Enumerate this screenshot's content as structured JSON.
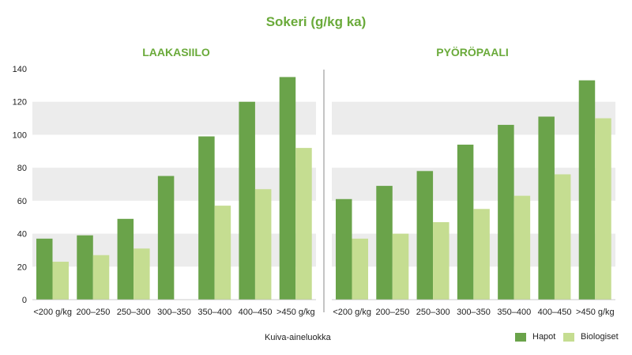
{
  "chart_data": {
    "type": "bar",
    "title": "Sokeri (g/kg ka)",
    "xlabel": "Kuiva-aineluokka",
    "ylim": [
      0,
      140
    ],
    "yticks": [
      0,
      20,
      40,
      60,
      80,
      100,
      120,
      140
    ],
    "grid": true,
    "legend_position": "bottom-right",
    "categories": [
      "<200 g/kg",
      "200–250",
      "250–300",
      "300–350",
      "350–400",
      "400–450",
      ">450 g/kg"
    ],
    "colors": {
      "Hapot": "#6aa34a",
      "Biologiset": "#c5dd91",
      "title": "#6aaa3a",
      "band": "#ececec"
    },
    "panels": [
      {
        "title": "LAAKASIILO",
        "series": [
          {
            "name": "Hapot",
            "values": [
              37,
              39,
              49,
              75,
              99,
              120,
              135
            ]
          },
          {
            "name": "Biologiset",
            "values": [
              23,
              27,
              31,
              null,
              57,
              67,
              92
            ]
          }
        ]
      },
      {
        "title": "PYÖRÖPAALI",
        "series": [
          {
            "name": "Hapot",
            "values": [
              61,
              69,
              78,
              94,
              106,
              111,
              133
            ]
          },
          {
            "name": "Biologiset",
            "values": [
              37,
              40,
              47,
              55,
              63,
              76,
              110
            ]
          }
        ]
      }
    ]
  }
}
